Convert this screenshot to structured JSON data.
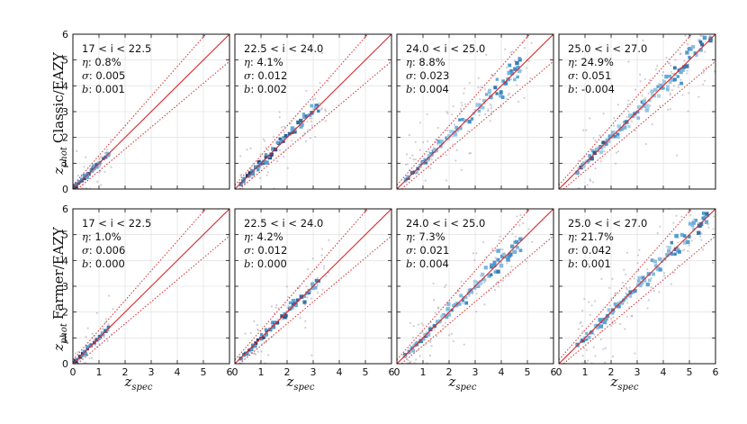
{
  "figure": {
    "xlabel_main": "z",
    "xlabel_sub": "spec",
    "ylabel_main": "z",
    "ylabel_sub": "phot",
    "rows": [
      {
        "label": "Classic/EAZY"
      },
      {
        "label": "Farmer/EAZY"
      }
    ],
    "tick_labels": [
      "0",
      "1",
      "2",
      "3",
      "4",
      "5",
      "6"
    ]
  },
  "colors": {
    "one_to_one": "#d62728",
    "outlier_bounds": "#d62728",
    "grid": "#dcdcdc",
    "scatter": "#9a8f9f",
    "density_low": "#bfe0f2",
    "density_mid": "#3f8fca",
    "density_high": "#1b2a5e"
  },
  "chart_data": [
    {
      "type": "scatter",
      "row": "Classic/EAZY",
      "title": "17 < i < 22.5",
      "eta": "0.8%",
      "sigma": "0.005",
      "bias": "0.001",
      "xlim": [
        0,
        6
      ],
      "ylim": [
        0,
        6
      ],
      "data_range": [
        0.0,
        1.4
      ],
      "one_to_one": true,
      "outlier_bound_factor": 0.15
    },
    {
      "type": "scatter",
      "row": "Classic/EAZY",
      "title": "22.5 < i < 24.0",
      "eta": "4.1%",
      "sigma": "0.012",
      "bias": "0.002",
      "xlim": [
        0,
        6
      ],
      "ylim": [
        0,
        6
      ],
      "data_range": [
        0.2,
        3.3
      ],
      "one_to_one": true,
      "outlier_bound_factor": 0.15
    },
    {
      "type": "scatter",
      "row": "Classic/EAZY",
      "title": "24.0 < i < 25.0",
      "eta": "8.8%",
      "sigma": "0.023",
      "bias": "0.004",
      "xlim": [
        0,
        6
      ],
      "ylim": [
        0,
        6
      ],
      "data_range": [
        0.3,
        4.8
      ],
      "one_to_one": true,
      "outlier_bound_factor": 0.15
    },
    {
      "type": "scatter",
      "row": "Classic/EAZY",
      "title": "25.0 < i < 27.0",
      "eta": "24.9%",
      "sigma": "0.051",
      "bias": "-0.004",
      "xlim": [
        0,
        6
      ],
      "ylim": [
        0,
        6
      ],
      "data_range": [
        0.7,
        5.8
      ],
      "one_to_one": true,
      "outlier_bound_factor": 0.15
    },
    {
      "type": "scatter",
      "row": "Farmer/EAZY",
      "title": "17 < i < 22.5",
      "eta": "1.0%",
      "sigma": "0.006",
      "bias": "0.000",
      "xlim": [
        0,
        6
      ],
      "ylim": [
        0,
        6
      ],
      "data_range": [
        0.0,
        1.4
      ],
      "one_to_one": true,
      "outlier_bound_factor": 0.15
    },
    {
      "type": "scatter",
      "row": "Farmer/EAZY",
      "title": "22.5 < i < 24.0",
      "eta": "4.2%",
      "sigma": "0.012",
      "bias": "0.000",
      "xlim": [
        0,
        6
      ],
      "ylim": [
        0,
        6
      ],
      "data_range": [
        0.2,
        3.3
      ],
      "one_to_one": true,
      "outlier_bound_factor": 0.15
    },
    {
      "type": "scatter",
      "row": "Farmer/EAZY",
      "title": "24.0 < i < 25.0",
      "eta": "7.3%",
      "sigma": "0.021",
      "bias": "0.004",
      "xlim": [
        0,
        6
      ],
      "ylim": [
        0,
        6
      ],
      "data_range": [
        0.3,
        4.8
      ],
      "one_to_one": true,
      "outlier_bound_factor": 0.15
    },
    {
      "type": "scatter",
      "row": "Farmer/EAZY",
      "title": "25.0 < i < 27.0",
      "eta": "21.7%",
      "sigma": "0.042",
      "bias": "0.001",
      "xlim": [
        0,
        6
      ],
      "ylim": [
        0,
        6
      ],
      "data_range": [
        0.7,
        5.8
      ],
      "one_to_one": true,
      "outlier_bound_factor": 0.15
    }
  ]
}
